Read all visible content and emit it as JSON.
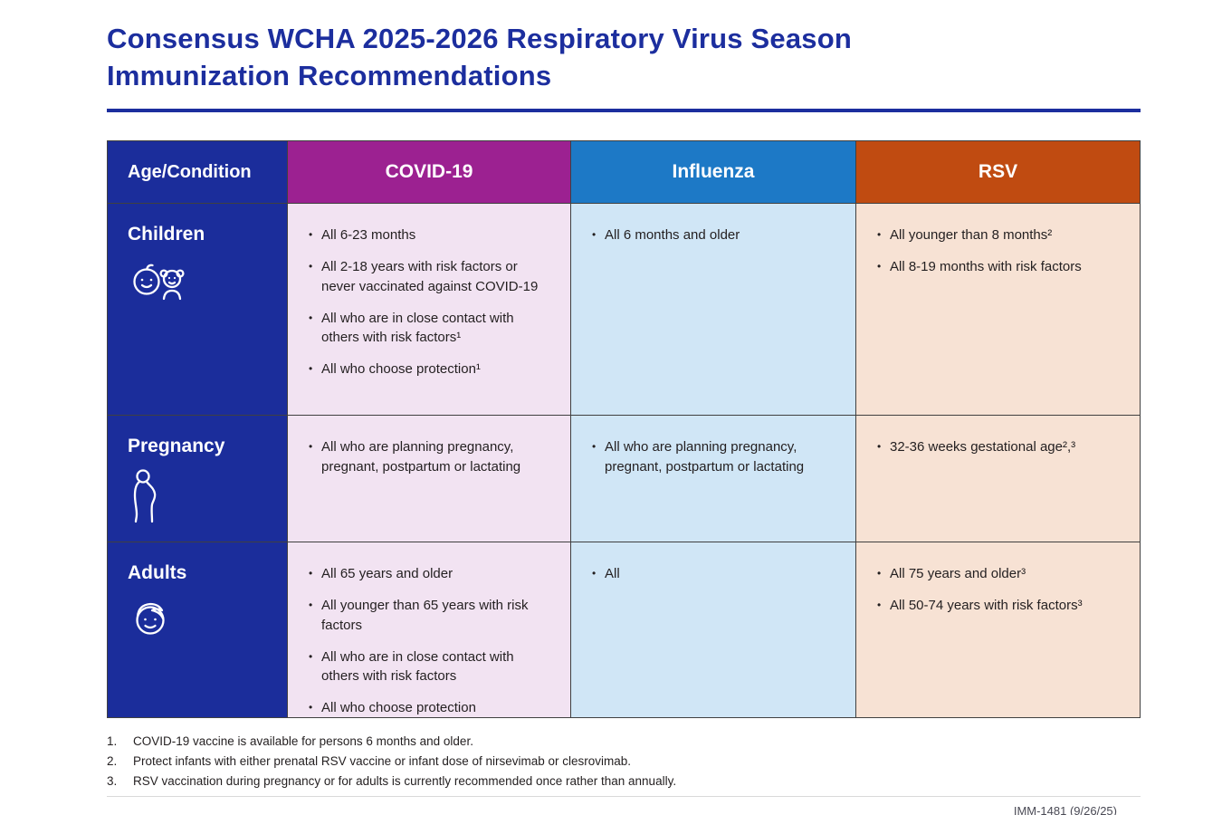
{
  "title": "Consensus WCHA 2025-2026 Respiratory Virus Season Immunization Recommendations",
  "colors": {
    "navy": "#1b2d9b",
    "title_blue": "#1c2e9e",
    "covid_purple": "#9c2191",
    "influenza_blue": "#1d79c6",
    "rsv_rust": "#c04b11",
    "covid_cell": "#f2e3f2",
    "influenza_cell": "#d0e6f6",
    "rsv_cell": "#f7e2d4"
  },
  "table": {
    "headers": [
      "Age/Condition",
      "COVID-19",
      "Influenza",
      "RSV"
    ],
    "rows": [
      {
        "label": "Children",
        "icon": "children-icon",
        "covid19": [
          "All 6-23 months",
          "All 2-18 years with risk factors or never vaccinated against COVID-19",
          "All who are in close contact with others with risk factors¹",
          "All who choose protection¹"
        ],
        "influenza": [
          "All 6 months and older"
        ],
        "rsv": [
          "All younger than 8 months²",
          "All 8-19 months with risk factors"
        ]
      },
      {
        "label": "Pregnancy",
        "icon": "pregnancy-icon",
        "covid19": [
          "All who are planning pregnancy, pregnant, postpartum or lactating"
        ],
        "influenza": [
          "All who are planning pregnancy, pregnant, postpartum or lactating"
        ],
        "rsv": [
          "32-36 weeks gestational age²,³"
        ]
      },
      {
        "label": "Adults",
        "icon": "adult-icon",
        "covid19": [
          "All 65 years and older",
          "All younger than 65 years with risk factors",
          "All who are in close contact with others with risk factors",
          "All who choose protection"
        ],
        "influenza": [
          "All"
        ],
        "rsv": [
          "All 75 years and older³",
          "All 50-74 years with risk factors³"
        ]
      }
    ]
  },
  "footnotes": [
    {
      "num": "1.",
      "text": "COVID-19 vaccine is available for persons 6 months and older."
    },
    {
      "num": "2.",
      "text": "Protect infants with either prenatal RSV vaccine or infant dose of nirsevimab or clesrovimab."
    },
    {
      "num": "3.",
      "text": "RSV vaccination during pregnancy or for adults is currently recommended once rather than annually."
    }
  ],
  "doc_id": "IMM-1481 (9/26/25)"
}
